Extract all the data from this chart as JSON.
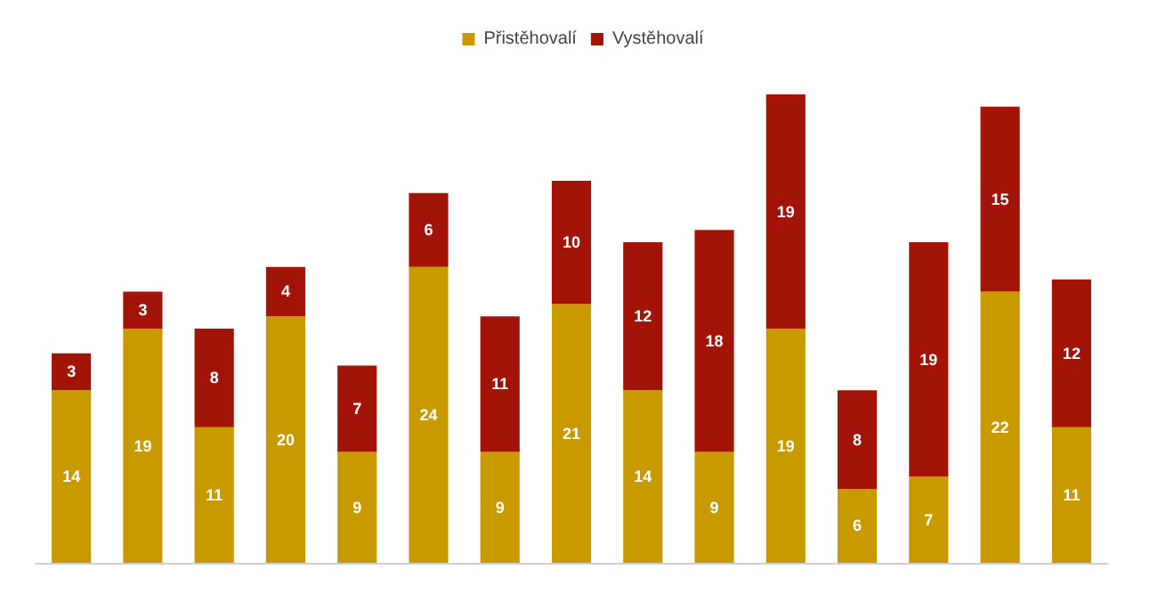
{
  "chart_data": {
    "type": "bar",
    "stacked": true,
    "data_labels": true,
    "legend": "top",
    "grid": false,
    "tick_labels": false,
    "categories": [
      null,
      null,
      null,
      null,
      null,
      null,
      null,
      null,
      null,
      null,
      null,
      null,
      null,
      null,
      null
    ],
    "series": [
      {
        "name": "Přistěhovalí",
        "color": "#c89a00",
        "values": [
          14,
          19,
          11,
          20,
          9,
          24,
          9,
          21,
          14,
          9,
          19,
          6,
          7,
          22,
          11
        ]
      },
      {
        "name": "Vystěhovalí",
        "color": "#a31408",
        "values": [
          3,
          3,
          8,
          4,
          7,
          6,
          11,
          10,
          12,
          18,
          19,
          8,
          19,
          15,
          12
        ]
      }
    ]
  }
}
